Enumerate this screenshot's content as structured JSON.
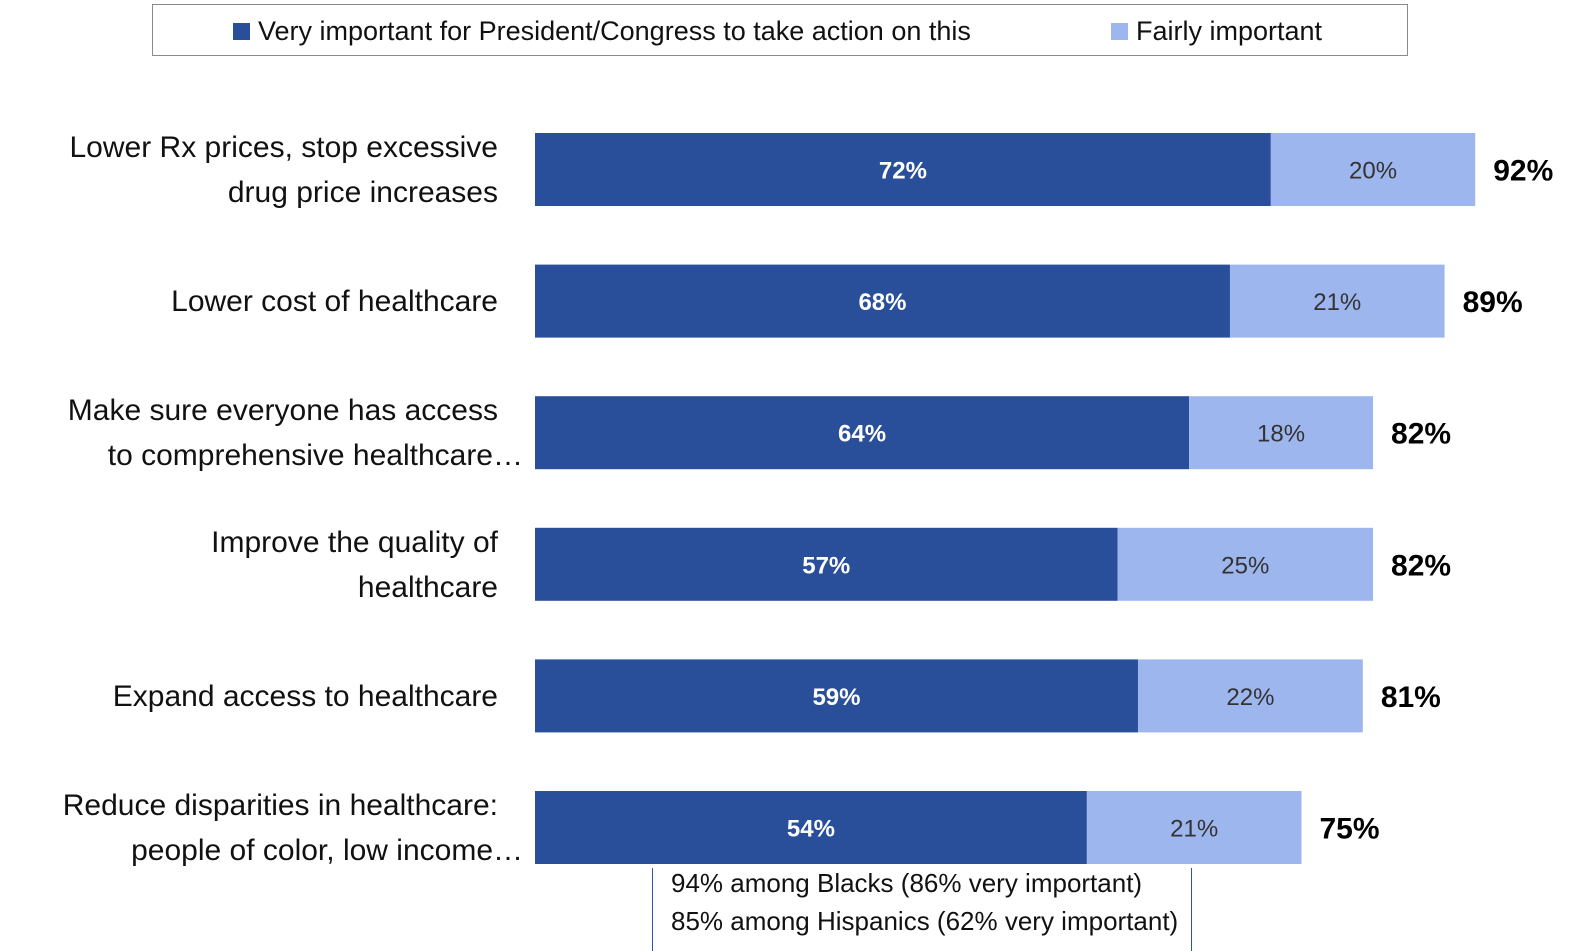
{
  "legend": {
    "very_label": "Very important for President/Congress to take action on this",
    "fairly_label": "Fairly important"
  },
  "colors": {
    "very": "#294f9a",
    "fairly": "#9eb6ee",
    "very_text": "#ffffff",
    "fairly_text": "#333333",
    "annotation_line": "#2d55a8"
  },
  "chart_data": {
    "type": "bar",
    "orientation": "horizontal",
    "stacked": true,
    "grid": false,
    "legend_position": "top",
    "categories": [
      [
        "Lower Rx prices, stop excessive",
        "drug price increases"
      ],
      [
        "Lower cost of healthcare"
      ],
      [
        "Make sure everyone has access",
        "to comprehensive healthcare…"
      ],
      [
        "Improve the quality of",
        "healthcare"
      ],
      [
        "Expand access to healthcare"
      ],
      [
        "Reduce disparities in healthcare:",
        "people of color, low income…"
      ]
    ],
    "series": [
      {
        "name": "Very important for President/Congress to take action on this",
        "values": [
          72,
          68,
          64,
          57,
          59,
          54
        ],
        "labels": [
          "72%",
          "68%",
          "64%",
          "57%",
          "59%",
          "54%"
        ]
      },
      {
        "name": "Fairly important",
        "values": [
          20,
          21,
          18,
          25,
          22,
          21
        ],
        "labels": [
          "20%",
          "21%",
          "18%",
          "25%",
          "22%",
          "21%"
        ]
      }
    ],
    "totals": [
      "92%",
      "89%",
      "82%",
      "82%",
      "81%",
      "75%"
    ],
    "total_values": [
      92,
      89,
      82,
      82,
      81,
      75
    ],
    "xlim": [
      0,
      100
    ],
    "annotation": [
      "94% among Blacks (86% very important)",
      "85% among Hispanics (62% very important)"
    ]
  }
}
